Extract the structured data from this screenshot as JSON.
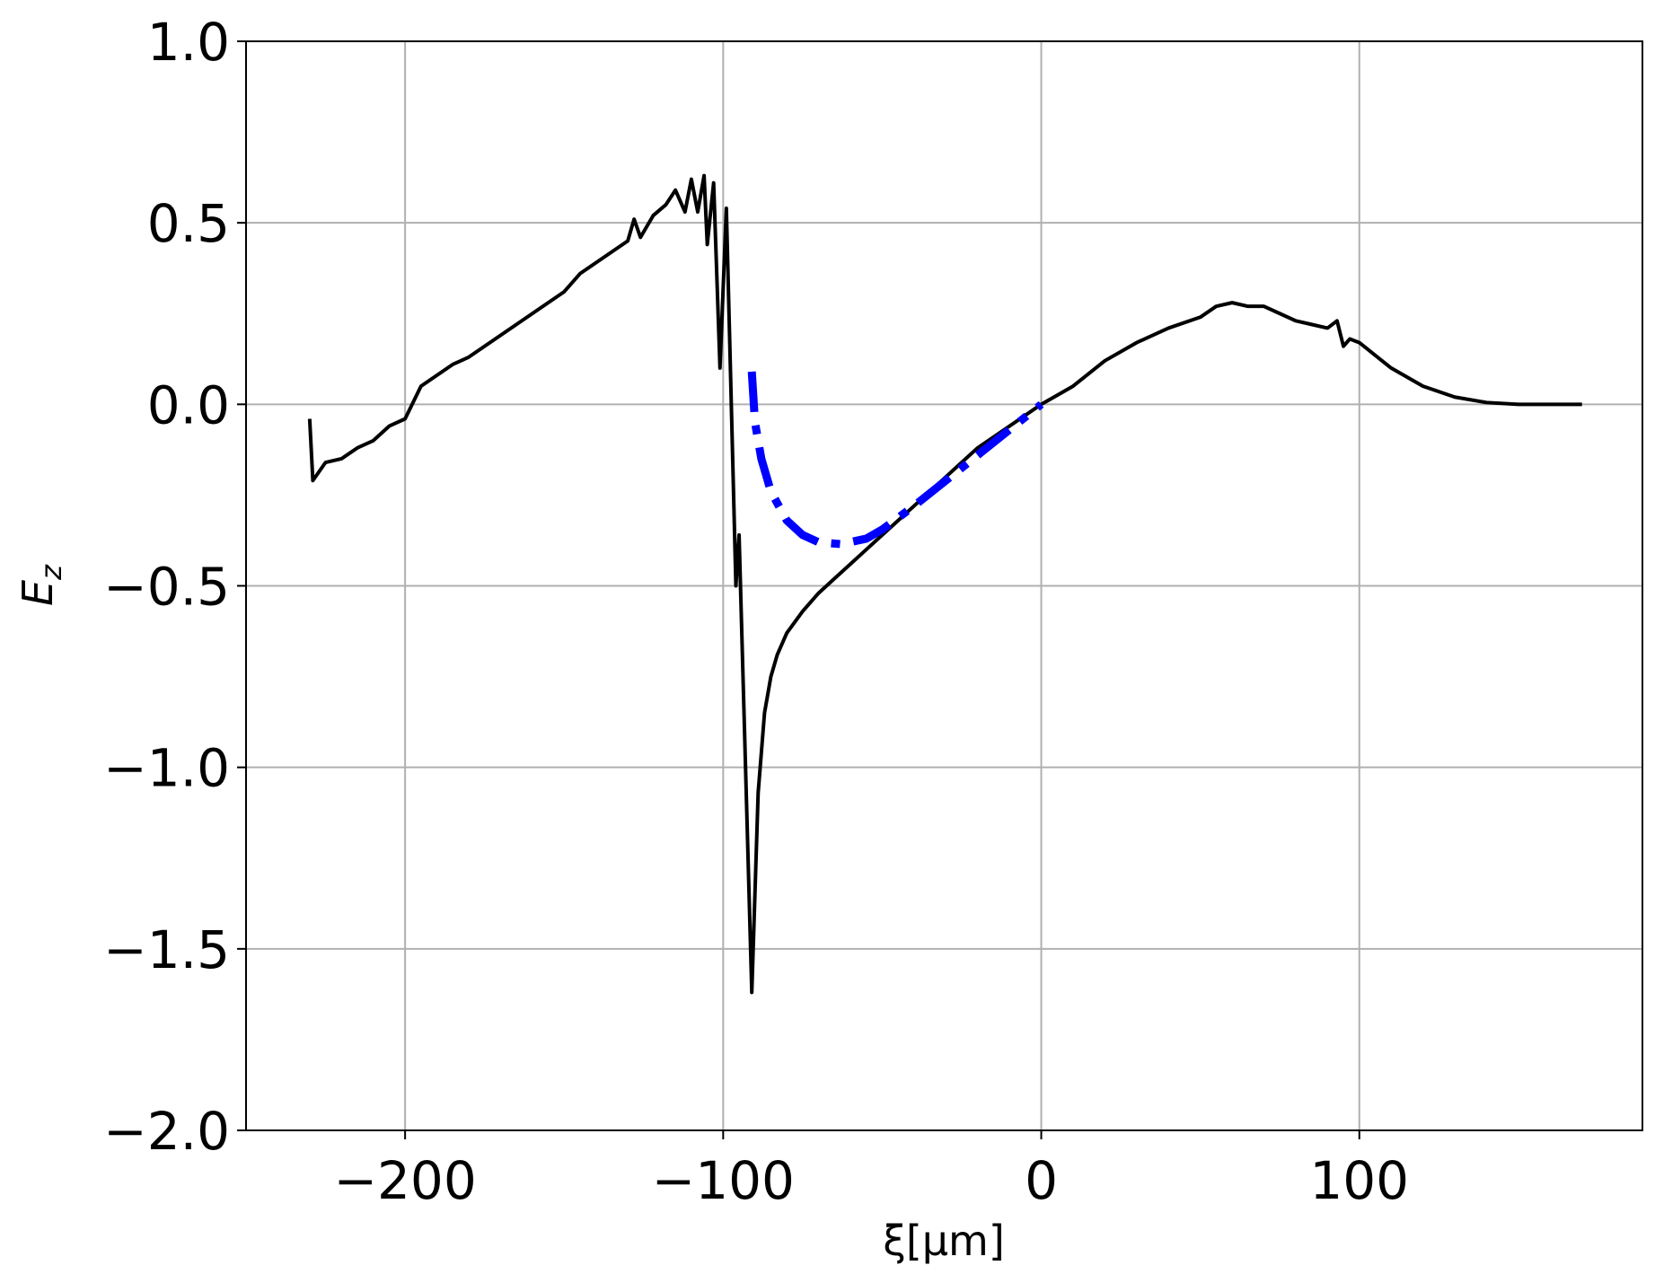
{
  "chart_data": {
    "type": "line",
    "xlabel": "ξ[μm]",
    "ylabel": [
      "E",
      "z"
    ],
    "xlim": [
      -250,
      189
    ],
    "ylim": [
      -2.0,
      1.0
    ],
    "xticks": [
      {
        "value": -200,
        "label": "−200"
      },
      {
        "value": -100,
        "label": "−100"
      },
      0,
      100
    ],
    "yticks": [
      {
        "value": 1.0,
        "label": "1.0"
      },
      0.5,
      {
        "value": 0.0,
        "label": "0.0"
      },
      {
        "value": -0.5,
        "label": "−0.5"
      },
      {
        "value": -1.0,
        "label": "−1.0"
      },
      {
        "value": -1.5,
        "label": "−1.5"
      },
      {
        "value": -2.0,
        "label": "−2.0"
      }
    ],
    "grid": true,
    "series": [
      {
        "color": "#000000",
        "style": "solid",
        "x": [
          -230,
          -229,
          -225,
          -220,
          -215,
          -210,
          -205,
          -200,
          -195,
          -190,
          -185,
          -180,
          -175,
          -170,
          -165,
          -160,
          -155,
          -150,
          -145,
          -140,
          -135,
          -130,
          -128,
          -126,
          -122,
          -118,
          -115,
          -112,
          -110,
          -108,
          -106,
          -105,
          -103,
          -101,
          -99,
          -96,
          -95,
          -91,
          -89,
          -87,
          -85,
          -83,
          -80,
          -75,
          -70,
          -65,
          -60,
          -55,
          -50,
          -45,
          -40,
          -35,
          -30,
          -25,
          -20,
          -15,
          -10,
          -5,
          0,
          10,
          20,
          30,
          40,
          50,
          55,
          60,
          65,
          70,
          75,
          80,
          85,
          90,
          93,
          95,
          97,
          100,
          110,
          120,
          130,
          140,
          150,
          170
        ],
        "values": [
          -0.04,
          -0.21,
          -0.16,
          -0.15,
          -0.12,
          -0.1,
          -0.06,
          -0.04,
          0.05,
          0.08,
          0.11,
          0.13,
          0.16,
          0.19,
          0.22,
          0.25,
          0.28,
          0.31,
          0.36,
          0.39,
          0.42,
          0.45,
          0.51,
          0.46,
          0.52,
          0.55,
          0.59,
          0.53,
          0.62,
          0.53,
          0.63,
          0.44,
          0.61,
          0.1,
          0.54,
          -0.5,
          -0.36,
          -1.62,
          -1.07,
          -0.85,
          -0.75,
          -0.69,
          -0.63,
          -0.57,
          -0.52,
          -0.48,
          -0.44,
          -0.4,
          -0.36,
          -0.32,
          -0.28,
          -0.24,
          -0.2,
          -0.16,
          -0.12,
          -0.09,
          -0.06,
          -0.03,
          0,
          0.05,
          0.12,
          0.17,
          0.21,
          0.24,
          0.27,
          0.28,
          0.27,
          0.27,
          0.25,
          0.23,
          0.22,
          0.21,
          0.23,
          0.16,
          0.18,
          0.17,
          0.1,
          0.05,
          0.02,
          0.005,
          0,
          0
        ]
      },
      {
        "color": "#0000ff",
        "style": "dashdot",
        "x": [
          -91,
          -90,
          -88,
          -85,
          -80,
          -75,
          -70,
          -63,
          -55,
          -50,
          -40,
          -30,
          -20,
          -10,
          0
        ],
        "values": [
          0.09,
          -0.05,
          -0.15,
          -0.24,
          -0.32,
          -0.36,
          -0.38,
          -0.385,
          -0.37,
          -0.345,
          -0.28,
          -0.21,
          -0.14,
          -0.07,
          0
        ]
      }
    ]
  }
}
